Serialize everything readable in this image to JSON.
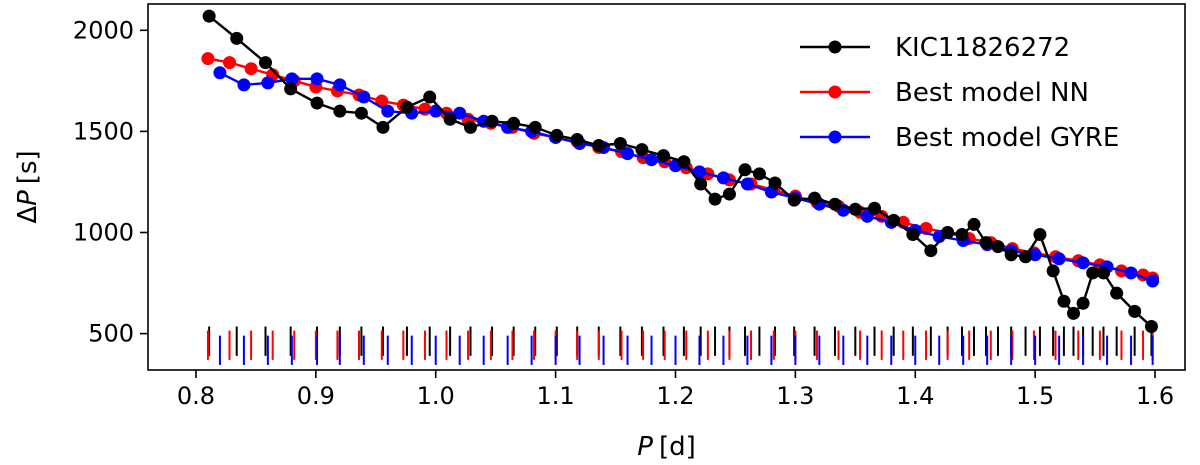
{
  "chart_data": {
    "type": "line",
    "title": "",
    "xlabel": "P [d]",
    "ylabel": "ΔP [s]",
    "xlabel_parts": {
      "symbol": "P",
      "unit": "[d]"
    },
    "ylabel_parts": {
      "prefix": "Δ",
      "symbol": "P",
      "unit": "[s]"
    },
    "xlim": [
      0.76,
      1.625
    ],
    "ylim": [
      320,
      2130
    ],
    "xticks": [
      "0.8",
      "0.9",
      "1.0",
      "1.1",
      "1.2",
      "1.3",
      "1.4",
      "1.5",
      "1.6"
    ],
    "yticks": [
      "500",
      "1000",
      "1500",
      "2000"
    ],
    "xtick_values": [
      0.8,
      0.9,
      1.0,
      1.1,
      1.2,
      1.3,
      1.4,
      1.5,
      1.6
    ],
    "ytick_values": [
      500,
      1000,
      1500,
      2000
    ],
    "grid": false,
    "legend": "top-right",
    "series": [
      {
        "name": "KIC11826272",
        "color": "#000000",
        "x": [
          0.811,
          0.834,
          0.858,
          0.879,
          0.901,
          0.92,
          0.938,
          0.956,
          0.976,
          0.995,
          1.012,
          1.029,
          1.047,
          1.065,
          1.083,
          1.101,
          1.118,
          1.136,
          1.154,
          1.172,
          1.19,
          1.207,
          1.221,
          1.233,
          1.245,
          1.258,
          1.27,
          1.283,
          1.299,
          1.316,
          1.333,
          1.35,
          1.366,
          1.382,
          1.398,
          1.413,
          1.427,
          1.439,
          1.449,
          1.459,
          1.469,
          1.48,
          1.492,
          1.504,
          1.515,
          1.524,
          1.532,
          1.54,
          1.548,
          1.557,
          1.568,
          1.583,
          1.597
        ],
        "y": [
          2070,
          1960,
          1840,
          1710,
          1640,
          1600,
          1590,
          1520,
          1620,
          1670,
          1560,
          1520,
          1550,
          1540,
          1520,
          1480,
          1460,
          1430,
          1440,
          1410,
          1380,
          1350,
          1240,
          1165,
          1190,
          1310,
          1290,
          1245,
          1160,
          1170,
          1140,
          1115,
          1120,
          1060,
          990,
          910,
          1000,
          990,
          1040,
          950,
          930,
          890,
          880,
          990,
          810,
          660,
          600,
          650,
          800,
          800,
          700,
          610,
          535
        ]
      },
      {
        "name": "Best model NN",
        "color": "#ff0000",
        "x": [
          0.81,
          0.828,
          0.846,
          0.864,
          0.882,
          0.9,
          0.918,
          0.936,
          0.955,
          0.973,
          0.991,
          1.009,
          1.027,
          1.046,
          1.064,
          1.082,
          1.1,
          1.118,
          1.136,
          1.155,
          1.173,
          1.191,
          1.209,
          1.227,
          1.245,
          1.263,
          1.282,
          1.3,
          1.318,
          1.336,
          1.354,
          1.372,
          1.39,
          1.409,
          1.427,
          1.445,
          1.463,
          1.481,
          1.499,
          1.517,
          1.536,
          1.554,
          1.572,
          1.59,
          1.598
        ],
        "y": [
          1860,
          1840,
          1810,
          1780,
          1750,
          1720,
          1700,
          1680,
          1650,
          1630,
          1610,
          1590,
          1560,
          1540,
          1520,
          1490,
          1470,
          1450,
          1420,
          1400,
          1370,
          1350,
          1320,
          1290,
          1260,
          1240,
          1210,
          1180,
          1150,
          1130,
          1100,
          1080,
          1050,
          1020,
          1000,
          970,
          950,
          920,
          900,
          880,
          860,
          840,
          810,
          790,
          775
        ]
      },
      {
        "name": "Best model GYRE",
        "color": "#0000ff",
        "x": [
          0.82,
          0.84,
          0.86,
          0.88,
          0.901,
          0.92,
          0.94,
          0.96,
          0.98,
          1.0,
          1.02,
          1.04,
          1.06,
          1.08,
          1.1,
          1.12,
          1.14,
          1.16,
          1.18,
          1.2,
          1.22,
          1.24,
          1.26,
          1.28,
          1.3,
          1.32,
          1.34,
          1.36,
          1.38,
          1.4,
          1.42,
          1.44,
          1.46,
          1.48,
          1.5,
          1.52,
          1.54,
          1.56,
          1.58,
          1.598
        ],
        "y": [
          1790,
          1730,
          1740,
          1760,
          1760,
          1730,
          1670,
          1600,
          1590,
          1600,
          1590,
          1550,
          1520,
          1500,
          1470,
          1440,
          1420,
          1390,
          1360,
          1330,
          1300,
          1270,
          1240,
          1200,
          1170,
          1140,
          1110,
          1080,
          1050,
          1010,
          980,
          960,
          940,
          910,
          890,
          870,
          850,
          830,
          800,
          760
        ]
      }
    ],
    "period_markers": {
      "description_free": true,
      "y_top": 535,
      "y_bottom": 390,
      "y_offsets": {
        "KIC11826272": 0,
        "Best model NN": -20,
        "Best model GYRE": -45
      }
    }
  }
}
